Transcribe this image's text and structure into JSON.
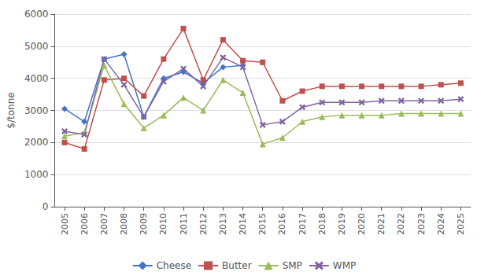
{
  "chart_data": {
    "type": "line",
    "x": [
      2005,
      2006,
      2007,
      2008,
      2009,
      2010,
      2011,
      2012,
      2013,
      2014,
      2015,
      2016,
      2017,
      2018,
      2019,
      2020,
      2021,
      2022,
      2023,
      2024,
      2025
    ],
    "xlim": [
      2004.5,
      2025.5
    ],
    "xticks": [
      2005,
      2006,
      2007,
      2008,
      2009,
      2010,
      2011,
      2012,
      2013,
      2014,
      2015,
      2016,
      2017,
      2018,
      2019,
      2020,
      2021,
      2022,
      2023,
      2024,
      2025
    ],
    "ylabel": "$/tonne",
    "ylim": [
      0,
      6000
    ],
    "yticks": [
      0,
      1000,
      2000,
      3000,
      4000,
      5000,
      6000
    ],
    "grid": true,
    "legend": "bottom",
    "series": [
      {
        "name": "Cheese",
        "color": "#4472C4",
        "marker": "diamond",
        "values": [
          3050,
          2650,
          4600,
          4750,
          2800,
          4000,
          4200,
          3850,
          4350,
          4400,
          null,
          null,
          null,
          null,
          null,
          null,
          null,
          null,
          null,
          null,
          null
        ]
      },
      {
        "name": "Butter",
        "color": "#C0504D",
        "marker": "square",
        "values": [
          2000,
          1800,
          3950,
          4000,
          3450,
          4600,
          5550,
          3950,
          5200,
          4550,
          4500,
          3300,
          3600,
          3750,
          3750,
          3750,
          3750,
          3750,
          3750,
          3800,
          3850
        ]
      },
      {
        "name": "SMP",
        "color": "#9BBB59",
        "marker": "triangle",
        "values": [
          2200,
          2300,
          4400,
          3200,
          2450,
          2850,
          3400,
          3000,
          3950,
          3550,
          1950,
          2150,
          2650,
          2800,
          2850,
          2850,
          2850,
          2900,
          2900,
          2900,
          2900
        ]
      },
      {
        "name": "WMP",
        "color": "#8064A2",
        "marker": "x",
        "values": [
          2350,
          2250,
          4600,
          3800,
          2800,
          3900,
          4300,
          3750,
          4650,
          4350,
          2550,
          2650,
          3100,
          3250,
          3250,
          3250,
          3300,
          3300,
          3300,
          3300,
          3350
        ]
      }
    ]
  }
}
